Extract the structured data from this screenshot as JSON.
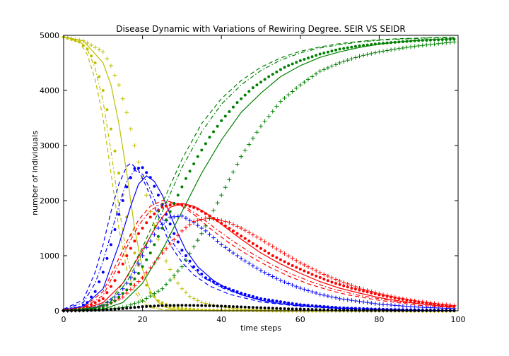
{
  "chart_data": {
    "type": "line",
    "title": "Disease Dynamic with Variations of Rewiring Degree. SEIR VS SEIDR",
    "xlabel": "time steps",
    "ylabel": "number of individuals",
    "xlim": [
      0,
      100
    ],
    "ylim": [
      0,
      5000
    ],
    "x_ticks": [
      "0",
      "20",
      "40",
      "60",
      "80",
      "100"
    ],
    "y_ticks": [
      "0",
      "1000",
      "2000",
      "3000",
      "4000",
      "5000"
    ],
    "grid": false,
    "legend": "none",
    "compartment_colors": {
      "susceptible": "#bfbf00",
      "exposed": "#0000ff",
      "infected": "#ff0000",
      "recovered": "#008000",
      "dead": "#000000"
    },
    "styles": [
      "solid",
      "dashed",
      "dashdot",
      "dots",
      "plus"
    ],
    "series": [
      {
        "color": "#bfbf00",
        "style": "solid",
        "x": [
          0,
          5,
          10,
          12,
          14,
          16,
          18,
          20,
          22,
          24,
          26,
          28,
          30,
          35,
          40,
          50,
          60,
          70,
          80,
          90,
          99
        ],
        "values": [
          4970,
          4900,
          4500,
          4100,
          3400,
          2500,
          1500,
          750,
          350,
          150,
          60,
          30,
          15,
          5,
          2,
          0,
          0,
          0,
          0,
          0,
          0
        ]
      },
      {
        "color": "#bfbf00",
        "style": "dashed",
        "x": [
          0,
          4,
          6,
          8,
          10,
          12,
          14,
          16,
          18,
          20,
          22,
          25,
          30,
          40,
          60,
          99
        ],
        "values": [
          4970,
          4880,
          4650,
          4200,
          3500,
          2500,
          1500,
          750,
          350,
          150,
          60,
          20,
          5,
          1,
          0,
          0
        ]
      },
      {
        "color": "#bfbf00",
        "style": "dashdot",
        "x": [
          0,
          4,
          6,
          8,
          10,
          12,
          14,
          16,
          18,
          20,
          22,
          25,
          30,
          40,
          60,
          99
        ],
        "values": [
          4970,
          4900,
          4750,
          4400,
          3800,
          2900,
          1900,
          1000,
          450,
          200,
          80,
          25,
          6,
          1,
          0,
          0
        ]
      },
      {
        "color": "#bfbf00",
        "style": "dots",
        "x": [
          0,
          4,
          6,
          8,
          10,
          12,
          14,
          16,
          18,
          20,
          22,
          24,
          27,
          30,
          35,
          40,
          50,
          60,
          70,
          80,
          99
        ],
        "values": [
          4970,
          4880,
          4750,
          4500,
          4000,
          3300,
          2500,
          1700,
          1050,
          600,
          330,
          180,
          80,
          40,
          15,
          8,
          3,
          1,
          0,
          0,
          0
        ]
      },
      {
        "color": "#bfbf00",
        "style": "plus",
        "x": [
          0,
          5,
          10,
          12,
          14,
          16,
          18,
          20,
          22,
          24,
          26,
          28,
          30,
          32,
          35,
          40,
          45,
          50,
          55,
          60,
          70,
          80,
          99
        ],
        "values": [
          4970,
          4900,
          4700,
          4450,
          4100,
          3600,
          3000,
          2400,
          1800,
          1300,
          900,
          600,
          400,
          260,
          150,
          70,
          30,
          12,
          5,
          2,
          0,
          0,
          0
        ]
      },
      {
        "color": "#0000ff",
        "style": "solid",
        "x": [
          0,
          5,
          10,
          14,
          17,
          19,
          21,
          23,
          25,
          27,
          29,
          31,
          34,
          38,
          42,
          46,
          50,
          55,
          60,
          70,
          80,
          90,
          99
        ],
        "values": [
          20,
          80,
          400,
          1200,
          1900,
          2300,
          2450,
          2350,
          2100,
          1750,
          1400,
          1100,
          800,
          550,
          380,
          270,
          190,
          130,
          90,
          45,
          20,
          8,
          3
        ]
      },
      {
        "color": "#0000ff",
        "style": "dashed",
        "x": [
          0,
          5,
          8,
          10,
          12,
          14,
          16,
          17,
          19,
          21,
          23,
          25,
          27,
          30,
          33,
          37,
          42,
          50,
          60,
          70,
          80,
          90,
          99
        ],
        "values": [
          30,
          200,
          700,
          1200,
          1800,
          2300,
          2620,
          2680,
          2550,
          2250,
          1900,
          1550,
          1200,
          880,
          650,
          450,
          300,
          160,
          80,
          40,
          20,
          8,
          3
        ]
      },
      {
        "color": "#0000ff",
        "style": "dashdot",
        "x": [
          0,
          5,
          8,
          10,
          12,
          14,
          16,
          18,
          20,
          22,
          24,
          26,
          28,
          31,
          35,
          40,
          45,
          50,
          60,
          70,
          80,
          90,
          99
        ],
        "values": [
          25,
          150,
          500,
          900,
          1400,
          1900,
          2350,
          2550,
          2480,
          2200,
          1850,
          1500,
          1200,
          900,
          620,
          420,
          290,
          200,
          110,
          55,
          28,
          12,
          5
        ]
      },
      {
        "color": "#0000ff",
        "style": "dots",
        "x": [
          0,
          4,
          6,
          8,
          10,
          12,
          14,
          16,
          18,
          20,
          22,
          24,
          26,
          28,
          30,
          33,
          36,
          40,
          45,
          50,
          60,
          70,
          80,
          90,
          99
        ],
        "values": [
          15,
          60,
          150,
          350,
          700,
          1200,
          1750,
          2250,
          2580,
          2600,
          2420,
          2100,
          1750,
          1400,
          1100,
          800,
          600,
          450,
          320,
          220,
          110,
          55,
          28,
          14,
          6
        ]
      },
      {
        "color": "#0000ff",
        "style": "plus",
        "x": [
          0,
          5,
          10,
          14,
          18,
          21,
          24,
          27,
          30,
          33,
          36,
          40,
          45,
          50,
          55,
          60,
          65,
          70,
          80,
          90,
          99
        ],
        "values": [
          10,
          30,
          100,
          300,
          700,
          1150,
          1500,
          1700,
          1720,
          1600,
          1450,
          1200,
          950,
          730,
          550,
          410,
          300,
          220,
          120,
          65,
          40
        ]
      },
      {
        "color": "#ff0000",
        "style": "solid",
        "x": [
          0,
          5,
          10,
          15,
          20,
          24,
          27,
          30,
          33,
          36,
          40,
          45,
          50,
          55,
          60,
          65,
          70,
          75,
          80,
          85,
          90,
          95,
          99
        ],
        "values": [
          10,
          30,
          150,
          500,
          1100,
          1600,
          1880,
          1950,
          1900,
          1780,
          1570,
          1300,
          1050,
          850,
          680,
          530,
          410,
          320,
          240,
          180,
          130,
          90,
          65
        ]
      },
      {
        "color": "#ff0000",
        "style": "dashed",
        "x": [
          0,
          5,
          10,
          13,
          16,
          19,
          22,
          25,
          27,
          30,
          33,
          37,
          42,
          47,
          52,
          57,
          62,
          67,
          72,
          80,
          90,
          99
        ],
        "values": [
          15,
          60,
          350,
          800,
          1250,
          1650,
          1900,
          2000,
          1980,
          1900,
          1750,
          1500,
          1230,
          1000,
          800,
          630,
          490,
          380,
          290,
          190,
          100,
          55
        ]
      },
      {
        "color": "#ff0000",
        "style": "dashdot",
        "x": [
          0,
          5,
          10,
          13,
          16,
          19,
          22,
          25,
          28,
          31,
          34,
          38,
          43,
          48,
          53,
          58,
          63,
          68,
          75,
          85,
          99
        ],
        "values": [
          12,
          50,
          280,
          700,
          1150,
          1550,
          1820,
          1950,
          1960,
          1880,
          1740,
          1520,
          1260,
          1030,
          830,
          660,
          520,
          400,
          280,
          160,
          70
        ]
      },
      {
        "color": "#ff0000",
        "style": "dots",
        "x": [
          0,
          5,
          10,
          13,
          16,
          19,
          22,
          25,
          28,
          31,
          34,
          38,
          43,
          48,
          53,
          58,
          63,
          68,
          73,
          80,
          85,
          90,
          95,
          99
        ],
        "values": [
          10,
          40,
          220,
          550,
          1000,
          1400,
          1700,
          1880,
          1940,
          1920,
          1850,
          1680,
          1450,
          1220,
          1000,
          820,
          660,
          520,
          410,
          290,
          220,
          160,
          110,
          80
        ]
      },
      {
        "color": "#ff0000",
        "style": "plus",
        "x": [
          0,
          5,
          10,
          15,
          20,
          25,
          30,
          33,
          36,
          39,
          42,
          45,
          50,
          55,
          60,
          65,
          70,
          75,
          80,
          85,
          90,
          95,
          99
        ],
        "values": [
          5,
          20,
          80,
          250,
          600,
          1050,
          1450,
          1620,
          1680,
          1660,
          1600,
          1500,
          1300,
          1080,
          870,
          690,
          540,
          410,
          310,
          230,
          170,
          125,
          95
        ]
      },
      {
        "color": "#008000",
        "style": "solid",
        "x": [
          0,
          10,
          15,
          20,
          25,
          30,
          35,
          40,
          45,
          50,
          55,
          60,
          65,
          70,
          75,
          80,
          85,
          90,
          95,
          99
        ],
        "values": [
          0,
          30,
          150,
          500,
          1100,
          1800,
          2500,
          3100,
          3600,
          3950,
          4250,
          4450,
          4600,
          4700,
          4780,
          4840,
          4880,
          4910,
          4930,
          4940
        ]
      },
      {
        "color": "#008000",
        "style": "dashed",
        "x": [
          0,
          8,
          12,
          16,
          20,
          25,
          30,
          35,
          40,
          45,
          50,
          55,
          60,
          65,
          70,
          75,
          80,
          85,
          90,
          95,
          99
        ],
        "values": [
          0,
          50,
          200,
          600,
          1150,
          1950,
          2750,
          3400,
          3850,
          4180,
          4420,
          4590,
          4710,
          4790,
          4850,
          4890,
          4920,
          4940,
          4950,
          4960,
          4965
        ]
      },
      {
        "color": "#008000",
        "style": "dashdot",
        "x": [
          0,
          8,
          12,
          16,
          20,
          25,
          30,
          35,
          40,
          45,
          50,
          55,
          60,
          65,
          70,
          75,
          80,
          85,
          90,
          95,
          99
        ],
        "values": [
          0,
          40,
          170,
          520,
          1050,
          1800,
          2600,
          3250,
          3750,
          4100,
          4360,
          4550,
          4680,
          4770,
          4830,
          4880,
          4910,
          4930,
          4945,
          4955,
          4960
        ]
      },
      {
        "color": "#008000",
        "style": "dots",
        "x": [
          0,
          10,
          13,
          16,
          19,
          22,
          25,
          28,
          31,
          34,
          37,
          40,
          44,
          48,
          52,
          56,
          60,
          65,
          70,
          75,
          80,
          85,
          90,
          95,
          99
        ],
        "values": [
          0,
          60,
          180,
          380,
          680,
          1050,
          1500,
          1950,
          2400,
          2800,
          3150,
          3450,
          3780,
          4050,
          4250,
          4420,
          4540,
          4660,
          4750,
          4810,
          4850,
          4880,
          4905,
          4920,
          4930
        ]
      },
      {
        "color": "#008000",
        "style": "plus",
        "x": [
          0,
          10,
          15,
          20,
          25,
          30,
          35,
          40,
          45,
          50,
          55,
          60,
          65,
          70,
          75,
          80,
          85,
          90,
          95,
          99
        ],
        "values": [
          0,
          20,
          60,
          180,
          400,
          800,
          1400,
          2100,
          2800,
          3350,
          3800,
          4100,
          4350,
          4500,
          4620,
          4700,
          4760,
          4810,
          4850,
          4880
        ]
      },
      {
        "color": "#000000",
        "style": "dots",
        "x": [
          0,
          5,
          10,
          15,
          20,
          25,
          30,
          35,
          40,
          45,
          50,
          55,
          60,
          65,
          70,
          80,
          90,
          99
        ],
        "values": [
          0,
          5,
          15,
          40,
          75,
          95,
          100,
          95,
          85,
          70,
          55,
          40,
          30,
          20,
          12,
          5,
          2,
          1
        ]
      }
    ]
  }
}
